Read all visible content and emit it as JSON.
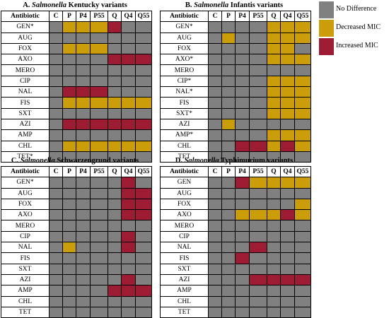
{
  "colors": {
    "0": "#808080",
    "1": "#cc9d0a",
    "2": "#9e1b34"
  },
  "legend": [
    {
      "label": "No Difference",
      "color": "#808080"
    },
    {
      "label": "Decreased MIC",
      "color": "#cc9d0a"
    },
    {
      "label": "Increased MIC",
      "color": "#9e1b34"
    }
  ],
  "columns": [
    "Antibiotic",
    "C",
    "P",
    "P4",
    "P55",
    "Q",
    "Q4",
    "Q55"
  ],
  "panels": [
    {
      "title_prefix": "A.",
      "title_genus": "Salmonella",
      "title_suffix": "Kentucky variants",
      "rows": [
        {
          "name": "GEN*",
          "v": [
            0,
            1,
            1,
            1,
            2,
            0,
            0
          ]
        },
        {
          "name": "AUG",
          "v": [
            0,
            0,
            0,
            0,
            0,
            0,
            0
          ]
        },
        {
          "name": "FOX",
          "v": [
            0,
            1,
            1,
            1,
            0,
            0,
            0
          ]
        },
        {
          "name": "AXO",
          "v": [
            0,
            0,
            0,
            0,
            2,
            2,
            2
          ]
        },
        {
          "name": "MERO",
          "v": [
            0,
            0,
            0,
            0,
            0,
            0,
            0
          ]
        },
        {
          "name": "CIP",
          "v": [
            0,
            0,
            0,
            0,
            0,
            0,
            0
          ]
        },
        {
          "name": "NAL",
          "v": [
            0,
            2,
            2,
            2,
            0,
            0,
            0
          ]
        },
        {
          "name": "FIS",
          "v": [
            0,
            1,
            1,
            1,
            1,
            1,
            1
          ]
        },
        {
          "name": "SXT",
          "v": [
            0,
            0,
            0,
            0,
            0,
            0,
            0
          ]
        },
        {
          "name": "AZI",
          "v": [
            0,
            2,
            2,
            2,
            2,
            2,
            2
          ]
        },
        {
          "name": "AMP",
          "v": [
            0,
            0,
            0,
            0,
            0,
            0,
            0
          ]
        },
        {
          "name": "CHL",
          "v": [
            0,
            1,
            1,
            1,
            1,
            1,
            1
          ]
        },
        {
          "name": "TET*",
          "v": [
            0,
            0,
            0,
            0,
            0,
            0,
            0
          ]
        }
      ]
    },
    {
      "title_prefix": "B.",
      "title_genus": "Salmonella",
      "title_suffix": "Infantis variants",
      "rows": [
        {
          "name": "GEN*",
          "v": [
            0,
            0,
            0,
            0,
            1,
            1,
            1
          ]
        },
        {
          "name": "AUG",
          "v": [
            0,
            1,
            0,
            0,
            1,
            1,
            1
          ]
        },
        {
          "name": "FOX",
          "v": [
            0,
            0,
            0,
            0,
            1,
            1,
            0
          ]
        },
        {
          "name": "AXO*",
          "v": [
            0,
            0,
            0,
            0,
            1,
            1,
            1
          ]
        },
        {
          "name": "MERO",
          "v": [
            0,
            0,
            0,
            0,
            0,
            0,
            0
          ]
        },
        {
          "name": "CIP*",
          "v": [
            0,
            0,
            0,
            0,
            1,
            1,
            1
          ]
        },
        {
          "name": "NAL*",
          "v": [
            0,
            0,
            0,
            0,
            1,
            1,
            1
          ]
        },
        {
          "name": "FIS",
          "v": [
            0,
            0,
            0,
            0,
            1,
            1,
            1
          ]
        },
        {
          "name": "SXT*",
          "v": [
            0,
            0,
            0,
            0,
            1,
            1,
            1
          ]
        },
        {
          "name": "AZI",
          "v": [
            0,
            1,
            0,
            0,
            0,
            0,
            0
          ]
        },
        {
          "name": "AMP*",
          "v": [
            0,
            0,
            0,
            0,
            1,
            1,
            1
          ]
        },
        {
          "name": "CHL",
          "v": [
            0,
            0,
            2,
            2,
            1,
            2,
            1
          ]
        },
        {
          "name": "TET",
          "v": [
            0,
            0,
            0,
            0,
            0,
            0,
            0
          ]
        }
      ]
    },
    {
      "title_prefix": "C.",
      "title_genus": "Salmonella",
      "title_suffix": "Schwarzengrund variants",
      "rows": [
        {
          "name": "GEN*",
          "v": [
            0,
            0,
            0,
            0,
            0,
            2,
            0
          ]
        },
        {
          "name": "AUG",
          "v": [
            0,
            0,
            0,
            0,
            0,
            2,
            2
          ]
        },
        {
          "name": "FOX",
          "v": [
            0,
            0,
            0,
            0,
            0,
            2,
            2
          ]
        },
        {
          "name": "AXO",
          "v": [
            0,
            0,
            0,
            0,
            0,
            2,
            2
          ]
        },
        {
          "name": "MERO",
          "v": [
            0,
            0,
            0,
            0,
            0,
            0,
            0
          ]
        },
        {
          "name": "CIP",
          "v": [
            0,
            0,
            0,
            0,
            0,
            2,
            0
          ]
        },
        {
          "name": "NAL",
          "v": [
            0,
            1,
            0,
            0,
            0,
            2,
            0
          ]
        },
        {
          "name": "FIS",
          "v": [
            0,
            0,
            0,
            0,
            0,
            0,
            0
          ]
        },
        {
          "name": "SXT",
          "v": [
            0,
            0,
            0,
            0,
            0,
            0,
            0
          ]
        },
        {
          "name": "AZI",
          "v": [
            0,
            0,
            0,
            0,
            0,
            2,
            0
          ]
        },
        {
          "name": "AMP",
          "v": [
            0,
            0,
            0,
            0,
            2,
            2,
            2
          ]
        },
        {
          "name": "CHL",
          "v": [
            0,
            0,
            0,
            0,
            0,
            0,
            0
          ]
        },
        {
          "name": "TET",
          "v": [
            0,
            0,
            0,
            0,
            0,
            0,
            0
          ]
        }
      ]
    },
    {
      "title_prefix": "D.",
      "title_genus": "Salmonella",
      "title_suffix": "Typhimurium variants",
      "rows": [
        {
          "name": "GEN",
          "v": [
            0,
            0,
            2,
            1,
            1,
            1,
            1
          ]
        },
        {
          "name": "AUG",
          "v": [
            0,
            0,
            0,
            0,
            0,
            0,
            0
          ]
        },
        {
          "name": "FOX",
          "v": [
            0,
            0,
            0,
            0,
            0,
            0,
            1
          ]
        },
        {
          "name": "AXO",
          "v": [
            0,
            0,
            1,
            1,
            1,
            2,
            1
          ]
        },
        {
          "name": "MERO",
          "v": [
            0,
            0,
            0,
            0,
            0,
            0,
            0
          ]
        },
        {
          "name": "CIP",
          "v": [
            0,
            0,
            0,
            0,
            0,
            0,
            0
          ]
        },
        {
          "name": "NAL",
          "v": [
            0,
            0,
            0,
            2,
            0,
            0,
            0
          ]
        },
        {
          "name": "FIS",
          "v": [
            0,
            0,
            2,
            0,
            0,
            0,
            0
          ]
        },
        {
          "name": "SXT",
          "v": [
            0,
            0,
            0,
            0,
            0,
            0,
            0
          ]
        },
        {
          "name": "AZI",
          "v": [
            0,
            0,
            0,
            2,
            2,
            2,
            2
          ]
        },
        {
          "name": "AMP",
          "v": [
            0,
            0,
            0,
            0,
            0,
            0,
            0
          ]
        },
        {
          "name": "CHL",
          "v": [
            0,
            0,
            0,
            0,
            0,
            0,
            0
          ]
        },
        {
          "name": "TET",
          "v": [
            0,
            0,
            0,
            0,
            0,
            0,
            0
          ]
        }
      ]
    }
  ]
}
